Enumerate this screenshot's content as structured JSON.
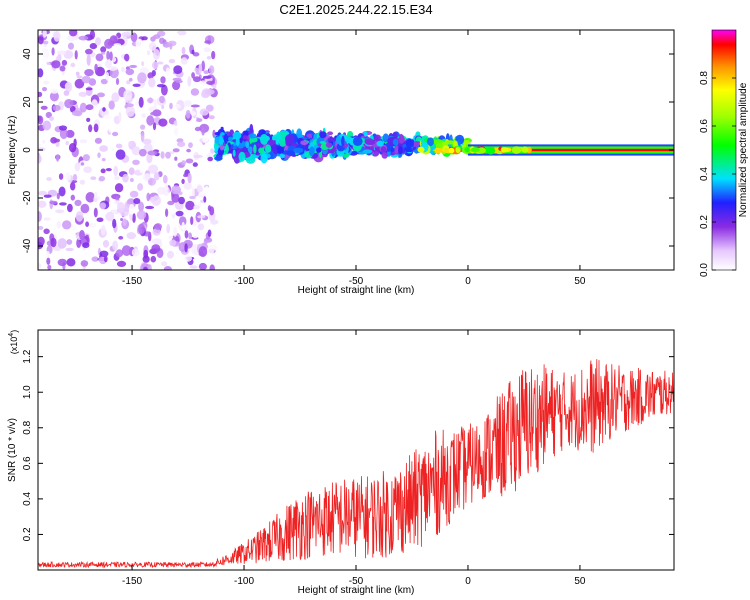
{
  "title": "C2E1.2025.244.22.15.E34",
  "colors": {
    "trace": "#ee2222",
    "frame": "#000000"
  },
  "colorbar": {
    "label": "Normalized spectral amplitude",
    "ticks": [
      "0.0",
      "0.2",
      "0.4",
      "0.6",
      "0.8"
    ],
    "tick_values": [
      0.0,
      0.2,
      0.4,
      0.6,
      0.8
    ],
    "range": [
      0,
      1
    ]
  },
  "chart_data": [
    {
      "type": "heatmap",
      "title": "C2E1.2025.244.22.15.E34",
      "xlabel": "Height of straight line (km)",
      "ylabel": "Frequency (Hz)",
      "xlim": [
        -192,
        92
      ],
      "ylim": [
        -50,
        50
      ],
      "xticks": [
        -150,
        -100,
        -50,
        0,
        50
      ],
      "xtick_labels": [
        "-150",
        "-100",
        "-50",
        "0",
        "50"
      ],
      "yticks": [
        -40,
        -20,
        0,
        20,
        40
      ],
      "ytick_labels": [
        "-40",
        "-20",
        "0",
        "20",
        "40"
      ],
      "regions": [
        {
          "x": [
            -192,
            -113
          ],
          "freq_spread": 50,
          "amplitude": [
            0.0,
            0.2
          ],
          "desc": "broadband noise"
        },
        {
          "x": [
            -112,
            -20
          ],
          "freq_spread": 10,
          "amplitude": [
            0.15,
            0.45
          ]
        },
        {
          "x": [
            -20,
            0
          ],
          "freq_spread": 4,
          "amplitude": [
            0.3,
            0.7
          ]
        },
        {
          "x": [
            0,
            92
          ],
          "freq_spread": 1.5,
          "amplitude": [
            0.85,
            1.0
          ],
          "center_freq": 0
        }
      ]
    },
    {
      "type": "line",
      "xlabel": "Height of straight line (km)",
      "ylabel": "SNR (10 * v/v)",
      "multiplier": "(x10",
      "multiplier_exp": "4",
      "multiplier_close": ")",
      "xlim": [
        -192,
        92
      ],
      "ylim": [
        0,
        1.35
      ],
      "xticks": [
        -150,
        -100,
        -50,
        0,
        50
      ],
      "xtick_labels": [
        "-150",
        "-100",
        "-50",
        "0",
        "50"
      ],
      "yticks": [
        0.2,
        0.4,
        0.6,
        0.8,
        1.0,
        1.2
      ],
      "ytick_labels": [
        "0.2",
        "0.4",
        "0.6",
        "0.8",
        "1.0",
        "1.2"
      ],
      "envelope": {
        "x": [
          -192,
          -115,
          -105,
          -95,
          -85,
          -75,
          -65,
          -55,
          -45,
          -35,
          -25,
          -15,
          -5,
          5,
          15,
          25,
          35,
          45,
          55,
          65,
          75,
          85,
          92
        ],
        "mean": [
          0.03,
          0.03,
          0.07,
          0.12,
          0.18,
          0.25,
          0.28,
          0.3,
          0.3,
          0.32,
          0.38,
          0.48,
          0.55,
          0.62,
          0.7,
          0.82,
          0.88,
          0.9,
          0.92,
          0.95,
          0.97,
          0.99,
          1.0
        ],
        "amp": [
          0.01,
          0.01,
          0.03,
          0.06,
          0.1,
          0.14,
          0.15,
          0.16,
          0.17,
          0.18,
          0.2,
          0.22,
          0.18,
          0.16,
          0.22,
          0.25,
          0.2,
          0.15,
          0.2,
          0.15,
          0.12,
          0.1,
          0.08
        ]
      }
    }
  ]
}
